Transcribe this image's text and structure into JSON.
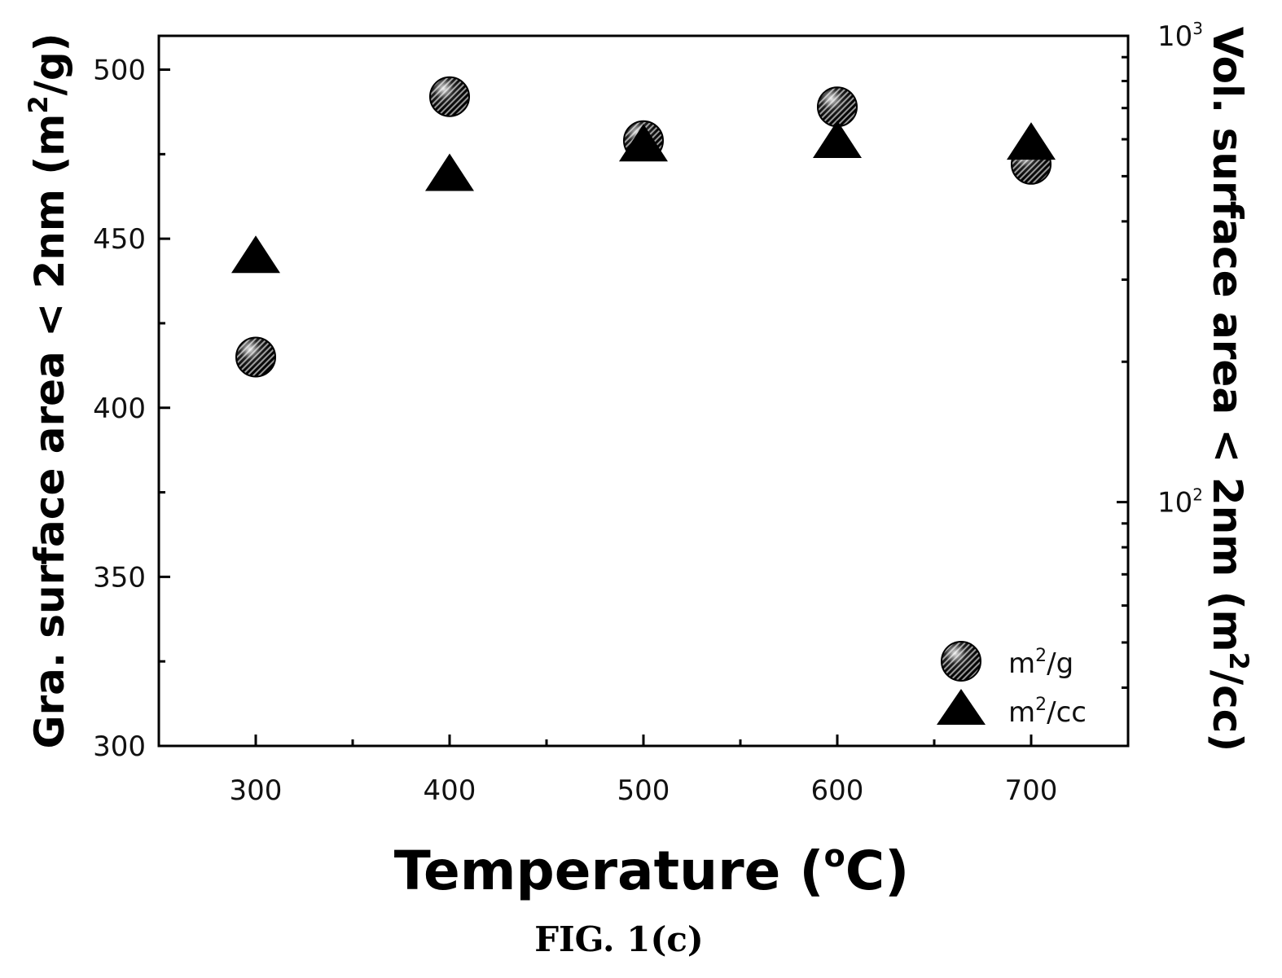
{
  "chart_data": {
    "type": "scatter",
    "x_axis": {
      "label": "Temperature (°C)",
      "label_main": "Temperature (",
      "label_degree": "o",
      "label_unit": "C)",
      "range": [
        250,
        750
      ],
      "ticks": [
        300,
        400,
        500,
        600,
        700
      ]
    },
    "y_axis_left": {
      "label_main": "Gra. surface area < 2nm (m",
      "label_sup": "2",
      "label_end": "/g)",
      "range": [
        300,
        510
      ],
      "ticks": [
        300,
        350,
        400,
        450,
        500
      ]
    },
    "y_axis_right": {
      "label_main": "Vol. surface area < 2nm (m",
      "label_sup": "2",
      "label_end": "/cc)",
      "scale": "log",
      "range": [
        30,
        1000
      ],
      "ticks": [
        {
          "value": 100,
          "base": "10",
          "exp": "2"
        },
        {
          "value": 1000,
          "base": "10",
          "exp": "3"
        }
      ]
    },
    "series": [
      {
        "name": "m2/g",
        "legend_main": "m",
        "legend_sup": "2",
        "legend_end": "/g",
        "axis": "left",
        "marker": "circle",
        "x": [
          300,
          400,
          500,
          600,
          700
        ],
        "y": [
          415,
          492,
          479,
          489,
          472
        ]
      },
      {
        "name": "m2/cc",
        "legend_main": "m",
        "legend_sup": "2",
        "legend_end": "/cc",
        "axis": "right",
        "marker": "triangle",
        "x": [
          300,
          400,
          500,
          600,
          700
        ],
        "y": [
          340,
          510,
          590,
          600,
          595
        ]
      }
    ],
    "legend_position": "bottom-right",
    "grid": false
  },
  "caption": "FIG. 1(c)",
  "colors": {
    "marker": "#000000",
    "axis": "#000000"
  }
}
